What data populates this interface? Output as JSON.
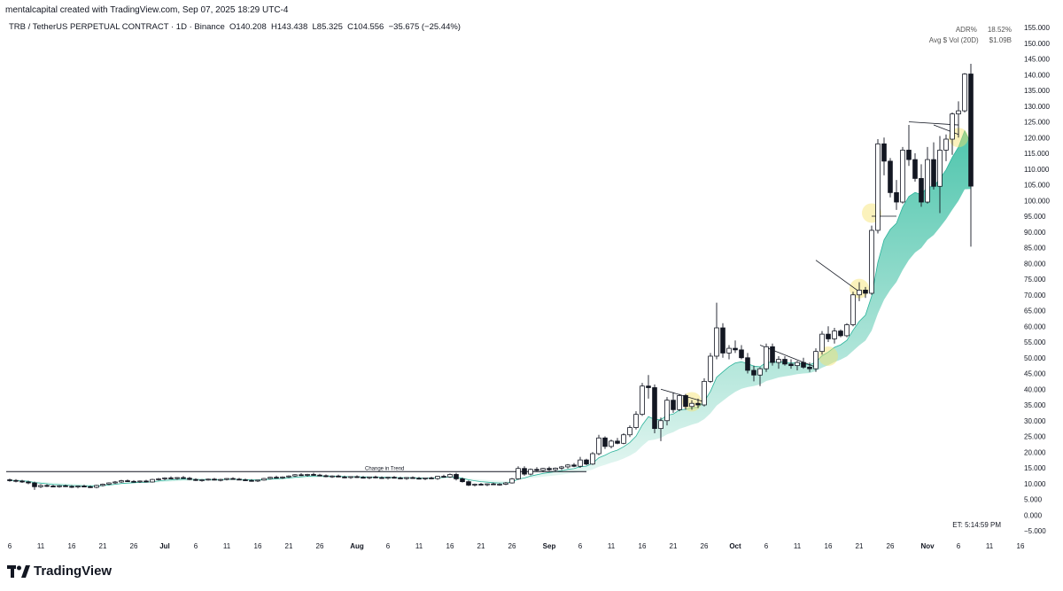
{
  "credit": "mentalcapital created with TradingView.com, Sep 07, 2025 18:29 UTC-4",
  "header": {
    "symbol": "TRB / TetherUS PERPETUAL CONTRACT · 1D · Binance",
    "open": "O140.208",
    "high": "H143.438",
    "low": "L85.325",
    "close": "C104.556",
    "change": "−35.675 (−25.44%)"
  },
  "stats": {
    "adr_label": "ADR%",
    "adr_value": "18.52%",
    "vol_label": "Avg $ Vol (20D)",
    "vol_value": "$1.09B"
  },
  "et_label": "ET:   5:14:59 PM",
  "brand": "TradingView",
  "chart_data": {
    "type": "candlestick",
    "y_ticks": [
      "155.000",
      "150.000",
      "145.000",
      "140.000",
      "135.000",
      "130.000",
      "125.000",
      "120.000",
      "115.000",
      "110.000",
      "105.000",
      "100.000",
      "95.000",
      "90.000",
      "85.000",
      "80.000",
      "75.000",
      "70.000",
      "65.000",
      "60.000",
      "55.000",
      "50.000",
      "45.000",
      "40.000",
      "35.000",
      "30.000",
      "25.000",
      "20.000",
      "15.000",
      "10.000",
      "5.000",
      "0.000",
      "−5.000"
    ],
    "ylim": [
      -5,
      155
    ],
    "x_ticks": [
      {
        "label": "6",
        "day": 0
      },
      {
        "label": "11",
        "day": 5
      },
      {
        "label": "16",
        "day": 10
      },
      {
        "label": "21",
        "day": 15
      },
      {
        "label": "26",
        "day": 20
      },
      {
        "label": "Jul",
        "day": 25,
        "bold": true
      },
      {
        "label": "6",
        "day": 30
      },
      {
        "label": "11",
        "day": 35
      },
      {
        "label": "16",
        "day": 40
      },
      {
        "label": "21",
        "day": 45
      },
      {
        "label": "26",
        "day": 50
      },
      {
        "label": "Aug",
        "day": 56,
        "bold": true
      },
      {
        "label": "6",
        "day": 61
      },
      {
        "label": "11",
        "day": 66
      },
      {
        "label": "16",
        "day": 71
      },
      {
        "label": "21",
        "day": 76
      },
      {
        "label": "26",
        "day": 81
      },
      {
        "label": "Sep",
        "day": 87,
        "bold": true
      },
      {
        "label": "6",
        "day": 92
      },
      {
        "label": "11",
        "day": 97
      },
      {
        "label": "16",
        "day": 102
      },
      {
        "label": "21",
        "day": 107
      },
      {
        "label": "26",
        "day": 112
      },
      {
        "label": "Oct",
        "day": 117,
        "bold": true
      },
      {
        "label": "6",
        "day": 122
      },
      {
        "label": "11",
        "day": 127
      },
      {
        "label": "16",
        "day": 132
      },
      {
        "label": "21",
        "day": 137
      },
      {
        "label": "26",
        "day": 142
      },
      {
        "label": "Nov",
        "day": 148,
        "bold": true
      },
      {
        "label": "6",
        "day": 153
      },
      {
        "label": "11",
        "day": 158
      },
      {
        "label": "16",
        "day": 163
      }
    ],
    "candles": [
      [
        0,
        11.2,
        11.6,
        10.6,
        11.0
      ],
      [
        1,
        11.0,
        11.4,
        10.4,
        10.8
      ],
      [
        2,
        10.8,
        11.2,
        10.2,
        10.5
      ],
      [
        3,
        10.5,
        10.9,
        9.8,
        10.2
      ],
      [
        4,
        10.2,
        10.6,
        8.0,
        9.0
      ],
      [
        5,
        9.0,
        9.8,
        8.6,
        9.4
      ],
      [
        6,
        9.4,
        9.8,
        8.9,
        9.2
      ],
      [
        7,
        9.2,
        9.6,
        8.8,
        9.0
      ],
      [
        8,
        9.0,
        9.5,
        8.7,
        9.3
      ],
      [
        9,
        9.3,
        9.7,
        8.9,
        9.1
      ],
      [
        10,
        9.1,
        9.5,
        8.6,
        8.9
      ],
      [
        11,
        8.9,
        9.3,
        8.5,
        9.2
      ],
      [
        12,
        9.2,
        9.6,
        8.8,
        9.0
      ],
      [
        13,
        9.0,
        9.4,
        8.6,
        8.8
      ],
      [
        14,
        8.8,
        9.6,
        8.5,
        9.4
      ],
      [
        15,
        9.4,
        10.0,
        9.1,
        9.8
      ],
      [
        16,
        9.8,
        10.4,
        9.5,
        10.2
      ],
      [
        17,
        10.2,
        10.8,
        9.9,
        10.5
      ],
      [
        18,
        10.5,
        11.2,
        10.2,
        10.9
      ],
      [
        19,
        10.9,
        11.3,
        10.5,
        10.7
      ],
      [
        20,
        10.7,
        11.1,
        10.3,
        10.6
      ],
      [
        21,
        10.6,
        11.0,
        10.2,
        10.8
      ],
      [
        22,
        10.8,
        11.2,
        10.4,
        10.5
      ],
      [
        23,
        10.5,
        11.5,
        10.3,
        11.3
      ],
      [
        24,
        11.3,
        11.8,
        11.0,
        11.5
      ],
      [
        25,
        11.5,
        12.0,
        11.1,
        11.8
      ],
      [
        26,
        11.8,
        12.3,
        11.4,
        11.6
      ],
      [
        27,
        11.6,
        12.0,
        11.2,
        11.9
      ],
      [
        28,
        11.9,
        12.4,
        11.5,
        11.7
      ],
      [
        29,
        11.7,
        12.1,
        11.1,
        11.3
      ],
      [
        30,
        11.3,
        11.7,
        10.8,
        11.0
      ],
      [
        31,
        11.0,
        11.4,
        10.6,
        11.2
      ],
      [
        32,
        11.2,
        11.6,
        10.9,
        11.4
      ],
      [
        33,
        11.4,
        11.8,
        11.0,
        11.1
      ],
      [
        34,
        11.1,
        11.5,
        10.7,
        11.3
      ],
      [
        35,
        11.3,
        11.7,
        11.0,
        11.6
      ],
      [
        36,
        11.6,
        12.0,
        11.3,
        11.4
      ],
      [
        37,
        11.4,
        11.8,
        11.1,
        11.2
      ],
      [
        38,
        11.2,
        11.6,
        10.8,
        11.0
      ],
      [
        39,
        11.0,
        11.4,
        10.6,
        10.8
      ],
      [
        40,
        10.8,
        11.2,
        10.5,
        11.1
      ],
      [
        41,
        11.1,
        11.8,
        10.9,
        11.6
      ],
      [
        42,
        11.6,
        12.2,
        11.3,
        12.0
      ],
      [
        43,
        12.0,
        12.5,
        11.6,
        11.8
      ],
      [
        44,
        11.8,
        12.3,
        11.5,
        12.1
      ],
      [
        45,
        12.1,
        12.6,
        11.8,
        12.4
      ],
      [
        46,
        12.4,
        13.0,
        12.1,
        12.8
      ],
      [
        47,
        12.8,
        13.3,
        12.4,
        12.6
      ],
      [
        48,
        12.6,
        13.1,
        12.2,
        12.9
      ],
      [
        49,
        12.9,
        13.4,
        12.5,
        12.7
      ],
      [
        50,
        12.7,
        13.1,
        12.3,
        12.5
      ],
      [
        51,
        12.5,
        12.9,
        12.0,
        12.2
      ],
      [
        52,
        12.2,
        12.6,
        11.8,
        12.4
      ],
      [
        53,
        12.4,
        12.8,
        12.0,
        12.1
      ],
      [
        54,
        12.1,
        12.5,
        11.7,
        11.9
      ],
      [
        55,
        11.9,
        12.3,
        11.5,
        12.2
      ],
      [
        56,
        12.2,
        12.6,
        11.8,
        12.0
      ],
      [
        57,
        12.0,
        12.4,
        11.6,
        11.8
      ],
      [
        58,
        11.8,
        12.2,
        11.4,
        12.1
      ],
      [
        59,
        12.1,
        12.5,
        11.7,
        11.9
      ],
      [
        60,
        11.9,
        12.3,
        11.5,
        11.7
      ],
      [
        61,
        11.7,
        12.1,
        11.3,
        12.0
      ],
      [
        62,
        12.0,
        12.4,
        11.6,
        11.8
      ],
      [
        63,
        11.8,
        12.2,
        11.4,
        11.6
      ],
      [
        64,
        11.6,
        12.0,
        11.2,
        11.9
      ],
      [
        65,
        11.9,
        12.3,
        11.5,
        11.7
      ],
      [
        66,
        11.7,
        12.1,
        11.3,
        11.5
      ],
      [
        67,
        11.5,
        11.9,
        11.1,
        11.8
      ],
      [
        68,
        11.8,
        12.2,
        11.4,
        11.6
      ],
      [
        69,
        11.6,
        12.4,
        11.2,
        12.3
      ],
      [
        70,
        12.3,
        12.8,
        11.9,
        12.1
      ],
      [
        71,
        12.1,
        13.2,
        11.8,
        12.9
      ],
      [
        72,
        12.9,
        13.4,
        11.0,
        11.5
      ],
      [
        73,
        11.5,
        11.9,
        10.3,
        10.6
      ],
      [
        74,
        10.6,
        11.0,
        9.2,
        9.5
      ],
      [
        75,
        9.5,
        10.0,
        9.1,
        9.8
      ],
      [
        76,
        9.8,
        10.2,
        9.4,
        9.6
      ],
      [
        77,
        9.6,
        10.0,
        9.2,
        9.9
      ],
      [
        78,
        9.9,
        10.3,
        9.5,
        9.7
      ],
      [
        79,
        9.7,
        10.1,
        9.3,
        9.8
      ],
      [
        80,
        9.8,
        10.5,
        9.5,
        10.2
      ],
      [
        81,
        10.2,
        11.8,
        10.0,
        11.5
      ],
      [
        82,
        11.5,
        15.5,
        11.2,
        14.8
      ],
      [
        83,
        14.8,
        15.5,
        12.5,
        13.0
      ],
      [
        84,
        13.0,
        14.8,
        12.6,
        14.5
      ],
      [
        85,
        14.5,
        15.2,
        13.8,
        14.2
      ],
      [
        86,
        14.2,
        15.0,
        13.6,
        14.8
      ],
      [
        87,
        14.8,
        15.4,
        14.0,
        14.4
      ],
      [
        88,
        14.4,
        15.1,
        13.9,
        14.9
      ],
      [
        89,
        14.9,
        15.6,
        14.3,
        15.3
      ],
      [
        90,
        15.3,
        16.2,
        14.8,
        15.9
      ],
      [
        91,
        15.9,
        16.5,
        15.2,
        15.5
      ],
      [
        92,
        15.5,
        18.5,
        15.0,
        17.5
      ],
      [
        93,
        17.5,
        17.9,
        15.8,
        16.2
      ],
      [
        94,
        16.2,
        20.0,
        15.9,
        19.5
      ],
      [
        95,
        19.5,
        25.5,
        19.0,
        24.5
      ],
      [
        96,
        24.5,
        25.0,
        21.0,
        21.8
      ],
      [
        97,
        21.8,
        24.0,
        21.2,
        23.5
      ],
      [
        98,
        23.5,
        24.5,
        22.5,
        22.8
      ],
      [
        99,
        22.8,
        26.0,
        22.5,
        25.5
      ],
      [
        100,
        25.5,
        28.5,
        24.8,
        27.8
      ],
      [
        101,
        27.8,
        33.0,
        27.2,
        32.0
      ],
      [
        102,
        32.0,
        42.0,
        31.5,
        41.0
      ],
      [
        103,
        41.0,
        44.5,
        37.0,
        40.5
      ],
      [
        104,
        40.5,
        41.5,
        26.0,
        27.5
      ],
      [
        105,
        27.5,
        31.0,
        23.5,
        30.0
      ],
      [
        106,
        30.0,
        37.5,
        28.5,
        36.5
      ],
      [
        107,
        36.5,
        39.0,
        32.5,
        33.5
      ],
      [
        108,
        33.5,
        38.5,
        33.0,
        38.0
      ],
      [
        109,
        38.0,
        38.5,
        33.5,
        34.5
      ],
      [
        110,
        34.5,
        36.5,
        33.5,
        35.5
      ],
      [
        111,
        35.5,
        37.0,
        34.0,
        35.0
      ],
      [
        112,
        35.0,
        43.5,
        34.5,
        42.5
      ],
      [
        113,
        42.5,
        51.5,
        42.0,
        50.5
      ],
      [
        114,
        50.5,
        67.5,
        49.5,
        59.5
      ],
      [
        115,
        59.5,
        61.0,
        50.0,
        51.5
      ],
      [
        116,
        51.5,
        54.0,
        49.5,
        53.0
      ],
      [
        117,
        53.0,
        55.5,
        51.5,
        52.5
      ],
      [
        118,
        52.5,
        54.0,
        49.5,
        50.0
      ],
      [
        119,
        50.0,
        51.5,
        45.0,
        46.0
      ],
      [
        120,
        46.0,
        47.5,
        42.5,
        44.5
      ],
      [
        121,
        44.5,
        47.0,
        41.0,
        46.5
      ],
      [
        122,
        46.5,
        54.5,
        45.5,
        53.5
      ],
      [
        123,
        53.5,
        54.5,
        47.5,
        48.5
      ],
      [
        124,
        48.5,
        50.5,
        46.5,
        49.5
      ],
      [
        125,
        49.5,
        50.5,
        47.5,
        48.0
      ],
      [
        126,
        48.0,
        49.5,
        46.5,
        47.5
      ],
      [
        127,
        47.5,
        49.0,
        46.0,
        48.5
      ],
      [
        128,
        48.5,
        50.0,
        46.5,
        47.0
      ],
      [
        129,
        47.0,
        48.5,
        45.5,
        46.5
      ],
      [
        130,
        46.5,
        53.0,
        45.5,
        52.0
      ],
      [
        131,
        52.0,
        58.5,
        51.0,
        57.5
      ],
      [
        132,
        57.5,
        60.0,
        55.0,
        56.0
      ],
      [
        133,
        56.0,
        59.5,
        54.5,
        58.5
      ],
      [
        134,
        58.5,
        59.0,
        56.5,
        57.0
      ],
      [
        135,
        57.0,
        61.0,
        56.5,
        60.5
      ],
      [
        136,
        60.5,
        71.0,
        60.0,
        70.0
      ],
      [
        137,
        70.0,
        74.0,
        68.0,
        71.5
      ],
      [
        138,
        71.5,
        72.5,
        69.0,
        70.5
      ],
      [
        139,
        70.5,
        92.0,
        70.0,
        90.5
      ],
      [
        140,
        90.5,
        119.5,
        89.5,
        118.0
      ],
      [
        141,
        118.0,
        120.0,
        108.0,
        112.5
      ],
      [
        142,
        112.5,
        113.5,
        101.0,
        102.5
      ],
      [
        143,
        102.5,
        106.5,
        97.0,
        99.5
      ],
      [
        144,
        99.5,
        117.0,
        99.0,
        116.0
      ],
      [
        145,
        116.0,
        124.0,
        111.0,
        113.0
      ],
      [
        146,
        113.0,
        115.0,
        106.0,
        107.0
      ],
      [
        147,
        107.0,
        111.5,
        98.0,
        99.5
      ],
      [
        148,
        99.5,
        117.0,
        99.0,
        113.0
      ],
      [
        149,
        113.0,
        118.5,
        103.5,
        104.5
      ],
      [
        150,
        104.5,
        120.5,
        96.0,
        116.0
      ],
      [
        151,
        116.0,
        121.0,
        112.5,
        119.5
      ],
      [
        152,
        119.5,
        128.0,
        114.5,
        127.5
      ],
      [
        153,
        127.5,
        131.5,
        120.0,
        128.5
      ],
      [
        154,
        128.5,
        140.5,
        128.0,
        140.2
      ],
      [
        155,
        140.208,
        143.438,
        85.325,
        104.556
      ]
    ],
    "annotations": [
      {
        "type": "text",
        "label": "Change in Trend",
        "day": 58,
        "value": 13.8
      }
    ]
  }
}
